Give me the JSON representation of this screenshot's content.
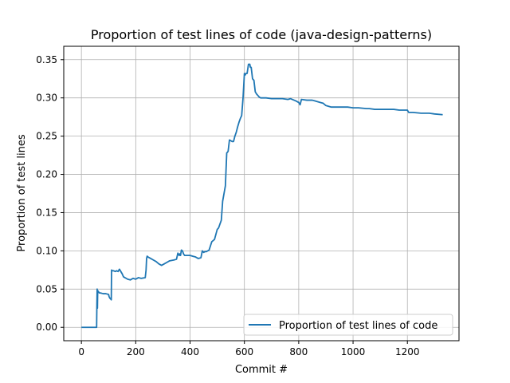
{
  "chart_data": {
    "type": "line",
    "title": "Proportion of test lines of code (java-design-patterns)",
    "xlabel": "Commit #",
    "ylabel": "Proportion of test lines",
    "xlim": [
      -65,
      1390
    ],
    "ylim": [
      -0.0175,
      0.3675
    ],
    "xticks": [
      {
        "value": 0,
        "label": "0"
      },
      {
        "value": 200,
        "label": "200"
      },
      {
        "value": 400,
        "label": "400"
      },
      {
        "value": 600,
        "label": "600"
      },
      {
        "value": 800,
        "label": "800"
      },
      {
        "value": 1000,
        "label": "1000"
      },
      {
        "value": 1200,
        "label": "1200"
      }
    ],
    "yticks": [
      {
        "value": 0.0,
        "label": "0.00"
      },
      {
        "value": 0.05,
        "label": "0.05"
      },
      {
        "value": 0.1,
        "label": "0.10"
      },
      {
        "value": 0.15,
        "label": "0.15"
      },
      {
        "value": 0.2,
        "label": "0.20"
      },
      {
        "value": 0.25,
        "label": "0.25"
      },
      {
        "value": 0.3,
        "label": "0.30"
      },
      {
        "value": 0.35,
        "label": "0.35"
      }
    ],
    "grid": true,
    "legend_position": "bottom-right",
    "series": [
      {
        "name": "Proportion of test lines of code",
        "color": "#1f77b4",
        "x": [
          0,
          56,
          57,
          58,
          59,
          60,
          62,
          64,
          66,
          70,
          80,
          90,
          100,
          102,
          105,
          108,
          110,
          111,
          113,
          118,
          125,
          130,
          135,
          140,
          145,
          150,
          155,
          160,
          165,
          170,
          180,
          190,
          200,
          210,
          220,
          235,
          238,
          240,
          242,
          245,
          255,
          265,
          275,
          285,
          295,
          305,
          315,
          325,
          340,
          350,
          355,
          360,
          362,
          365,
          368,
          372,
          376,
          380,
          385,
          390,
          400,
          410,
          420,
          430,
          440,
          445,
          450,
          455,
          460,
          465,
          470,
          480,
          490,
          500,
          505,
          510,
          515,
          520,
          525,
          530,
          535,
          540,
          545,
          550,
          555,
          560,
          565,
          570,
          575,
          580,
          585,
          590,
          595,
          600,
          603,
          606,
          610,
          615,
          620,
          622,
          625,
          630,
          635,
          640,
          645,
          650,
          655,
          660,
          670,
          680,
          700,
          720,
          740,
          760,
          770,
          790,
          800,
          805,
          810,
          830,
          850,
          860,
          870,
          880,
          890,
          900,
          920,
          940,
          960,
          980,
          1000,
          1020,
          1050,
          1060,
          1080,
          1100,
          1130,
          1150,
          1170,
          1190,
          1200,
          1205,
          1220,
          1250,
          1280,
          1300,
          1330
        ],
        "y": [
          0.0,
          0.0,
          0.03,
          0.05,
          0.025,
          0.048,
          0.047,
          0.046,
          0.045,
          0.045,
          0.044,
          0.044,
          0.043,
          0.04,
          0.038,
          0.037,
          0.036,
          0.075,
          0.074,
          0.074,
          0.073,
          0.074,
          0.073,
          0.076,
          0.073,
          0.07,
          0.066,
          0.065,
          0.064,
          0.063,
          0.062,
          0.064,
          0.063,
          0.065,
          0.064,
          0.065,
          0.075,
          0.09,
          0.093,
          0.092,
          0.09,
          0.088,
          0.086,
          0.083,
          0.081,
          0.083,
          0.085,
          0.087,
          0.088,
          0.089,
          0.097,
          0.094,
          0.096,
          0.094,
          0.101,
          0.1,
          0.096,
          0.094,
          0.094,
          0.094,
          0.094,
          0.093,
          0.092,
          0.09,
          0.091,
          0.1,
          0.098,
          0.099,
          0.099,
          0.1,
          0.101,
          0.112,
          0.115,
          0.128,
          0.13,
          0.135,
          0.14,
          0.165,
          0.175,
          0.185,
          0.228,
          0.23,
          0.245,
          0.244,
          0.243,
          0.243,
          0.25,
          0.255,
          0.262,
          0.268,
          0.273,
          0.277,
          0.3,
          0.332,
          0.33,
          0.332,
          0.332,
          0.344,
          0.344,
          0.34,
          0.34,
          0.325,
          0.323,
          0.308,
          0.305,
          0.303,
          0.301,
          0.3,
          0.3,
          0.3,
          0.299,
          0.299,
          0.299,
          0.298,
          0.299,
          0.296,
          0.294,
          0.291,
          0.298,
          0.297,
          0.297,
          0.296,
          0.295,
          0.294,
          0.293,
          0.29,
          0.288,
          0.288,
          0.288,
          0.288,
          0.287,
          0.287,
          0.286,
          0.286,
          0.285,
          0.285,
          0.285,
          0.285,
          0.284,
          0.284,
          0.284,
          0.281,
          0.281,
          0.28,
          0.28,
          0.279,
          0.278
        ]
      }
    ]
  }
}
